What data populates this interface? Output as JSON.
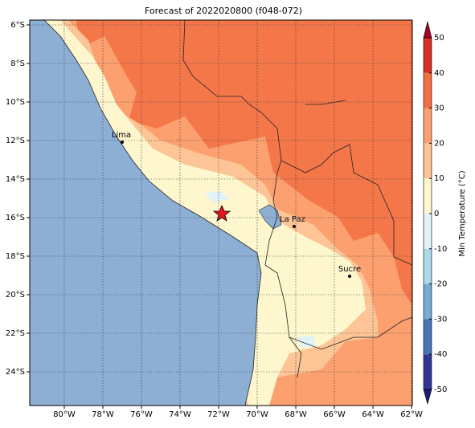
{
  "map": {
    "title": "Forecast of 2022020800 (f048-072)",
    "xlim": [
      -81.79,
      -61.96
    ],
    "ylim": [
      -25.75,
      -5.75
    ],
    "xticks": [
      {
        "value": -80,
        "label": "80°W"
      },
      {
        "value": -78,
        "label": "78°W"
      },
      {
        "value": -76,
        "label": "76°W"
      },
      {
        "value": -74,
        "label": "74°W"
      },
      {
        "value": -72,
        "label": "72°W"
      },
      {
        "value": -70,
        "label": "70°W"
      },
      {
        "value": -68,
        "label": "68°W"
      },
      {
        "value": -66,
        "label": "66°W"
      },
      {
        "value": -64,
        "label": "64°W"
      },
      {
        "value": -62,
        "label": "62°W"
      }
    ],
    "yticks": [
      {
        "value": -6,
        "label": "6°S"
      },
      {
        "value": -8,
        "label": "8°S"
      },
      {
        "value": -10,
        "label": "10°S"
      },
      {
        "value": -12,
        "label": "12°S"
      },
      {
        "value": -14,
        "label": "14°S"
      },
      {
        "value": -16,
        "label": "16°S"
      },
      {
        "value": -18,
        "label": "18°S"
      },
      {
        "value": -20,
        "label": "20°S"
      },
      {
        "value": -22,
        "label": "22°S"
      },
      {
        "value": -24,
        "label": "24°S"
      }
    ],
    "cities": [
      "Lima",
      "La Paz",
      "Sucre"
    ],
    "colorbar": {
      "label": "Min Temperature (°C)",
      "lim": [
        -50,
        50
      ],
      "ticks": [
        -50,
        -40,
        -30,
        -20,
        -10,
        0,
        10,
        20,
        30,
        40,
        50
      ],
      "colors": [
        "#313695",
        "#4575b4",
        "#74add1",
        "#abd9e9",
        "#e0f3f8",
        "#fef6cd",
        "#fdc596",
        "#fca070",
        "#f46d43",
        "#d73027"
      ],
      "under": "#1e1b72",
      "over": "#a50026"
    }
  }
}
